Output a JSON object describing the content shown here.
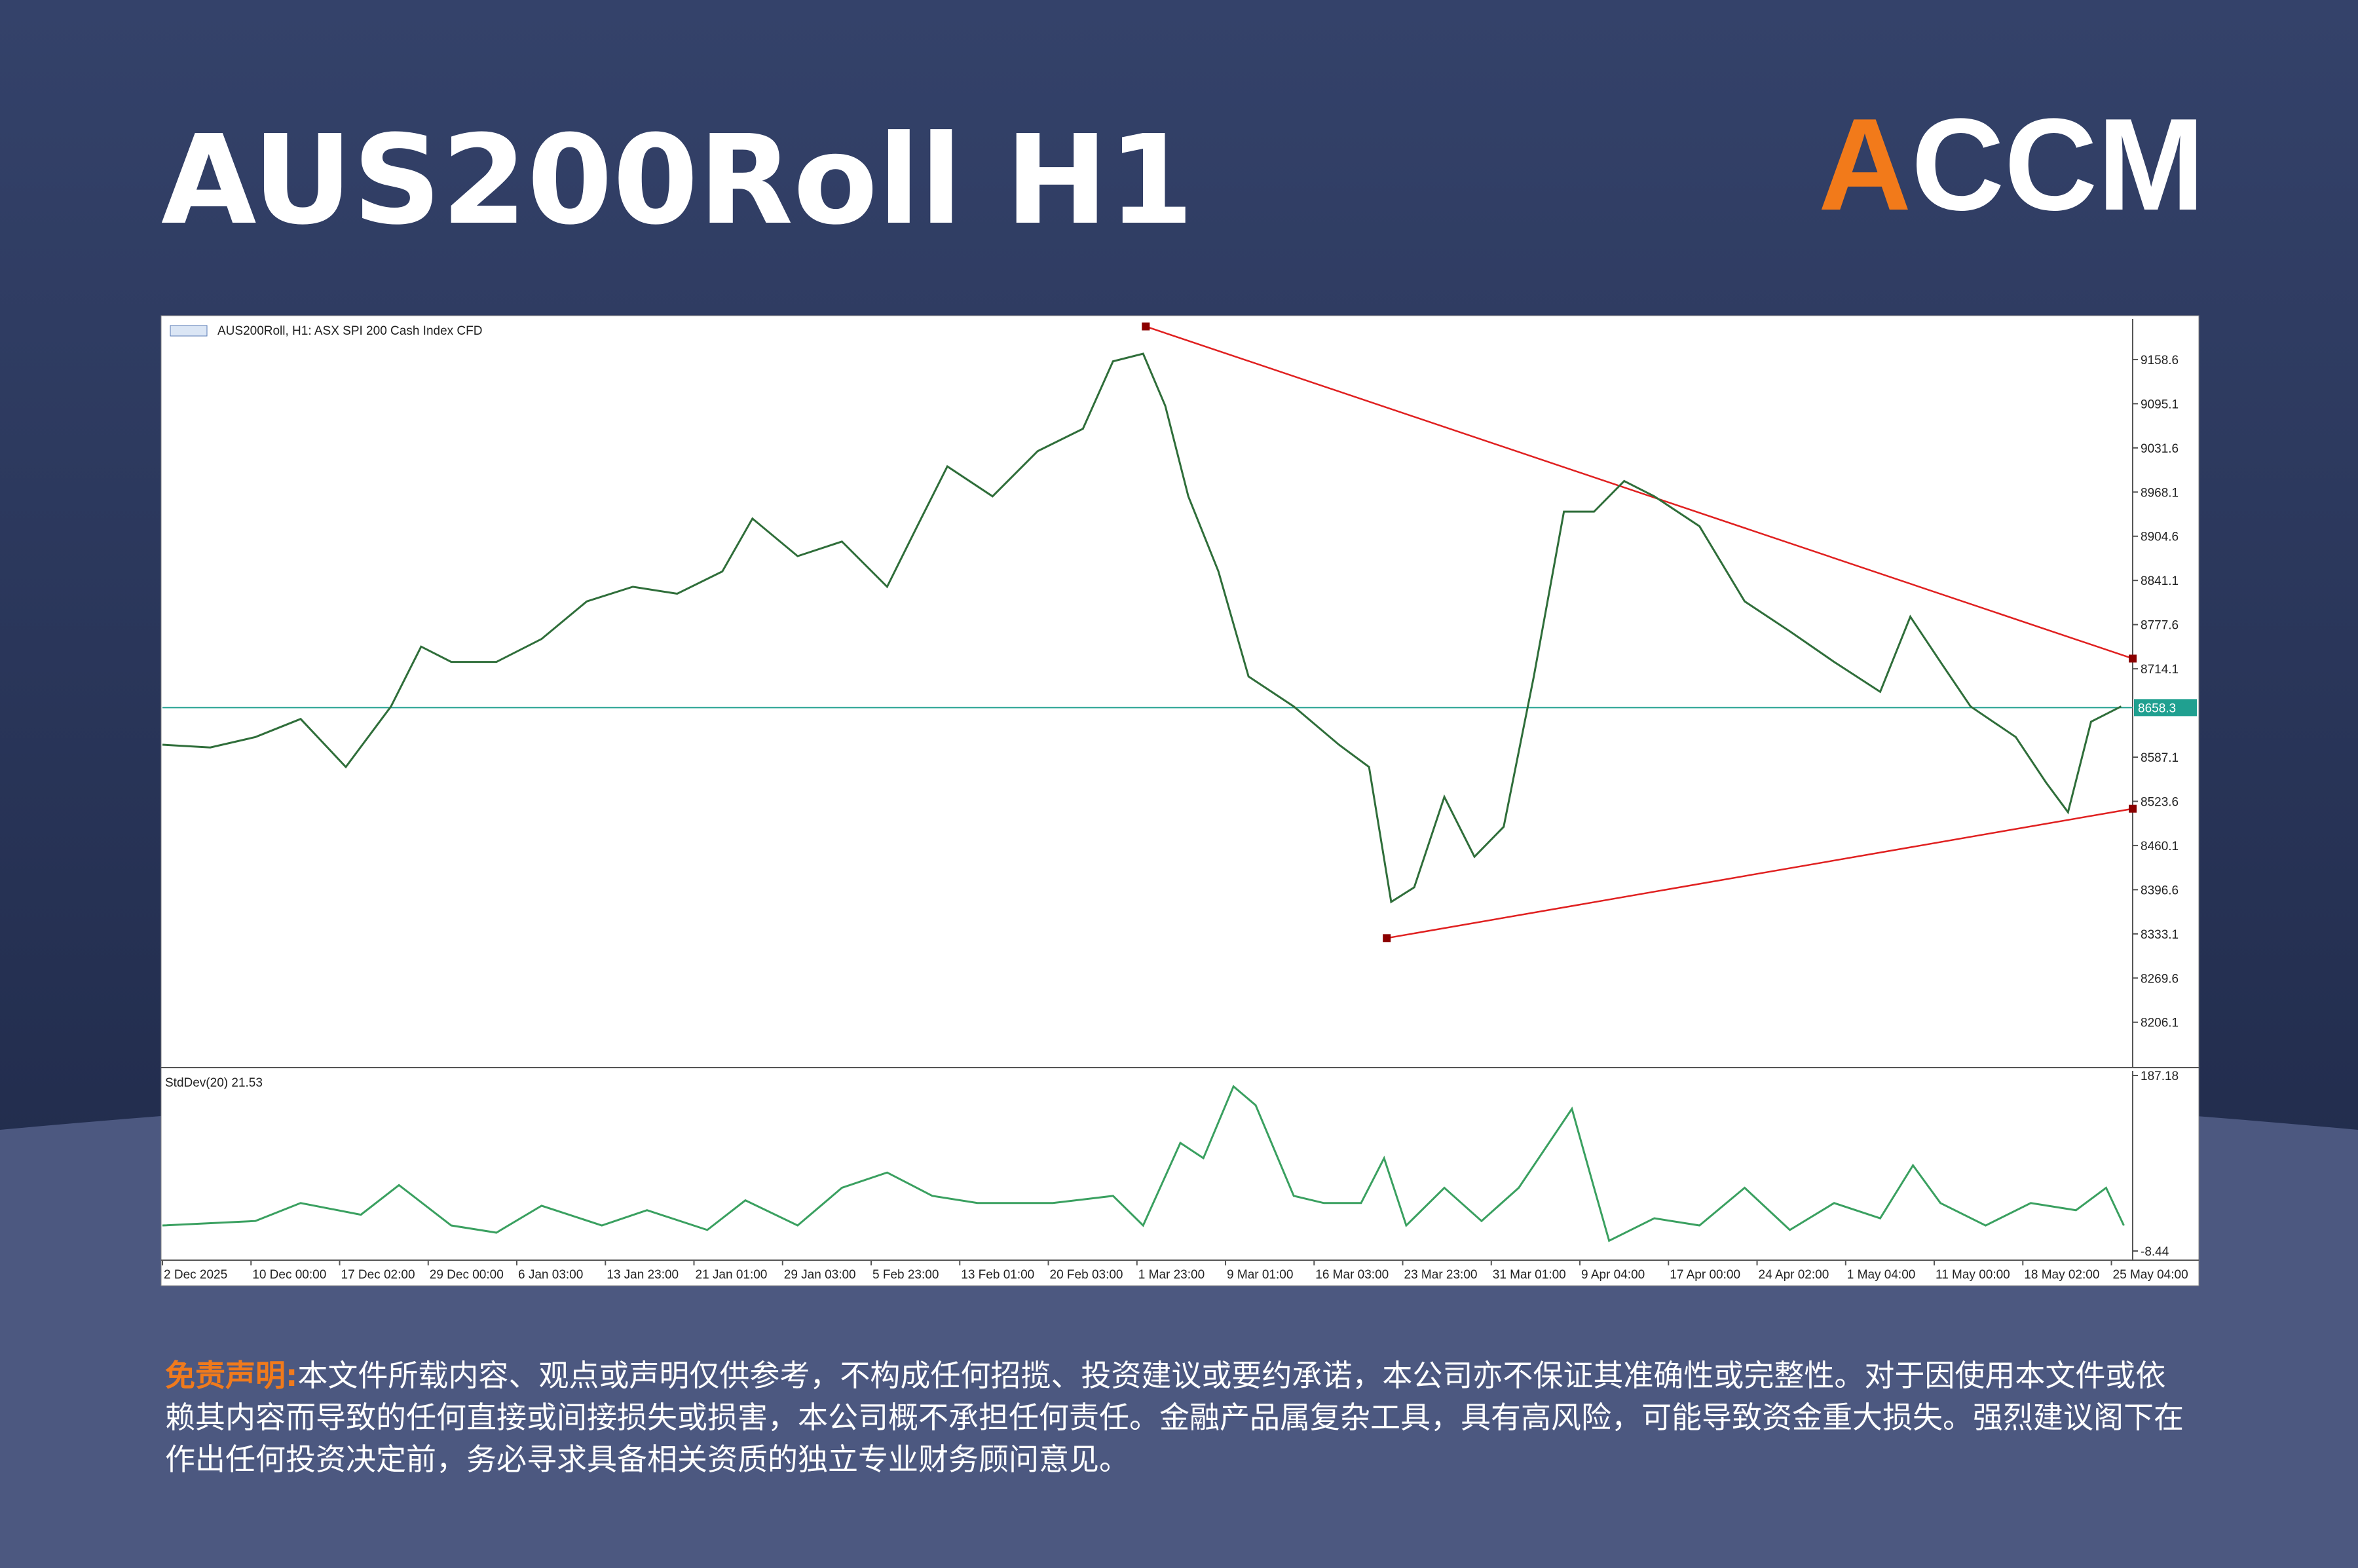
{
  "header": {
    "title": "AUS200Roll H1",
    "logo": "ACCM"
  },
  "chart_data": [
    {
      "type": "line",
      "title": "AUS200Roll, H1:  ASX SPI 200 Cash Index CFD",
      "x": [
        0,
        0.54,
        1.05,
        1.56,
        2.07,
        2.58,
        2.92,
        3.26,
        3.77,
        4.28,
        4.79,
        5.31,
        5.81,
        6.32,
        6.66,
        7.17,
        7.67,
        8.18,
        8.52,
        8.86,
        9.37,
        9.88,
        10.39,
        10.73,
        11.07,
        11.32,
        11.58,
        11.92,
        12.26,
        12.77,
        13.28,
        13.62,
        13.87,
        14.13,
        14.47,
        14.81,
        15.14,
        15.48,
        15.82,
        16.16,
        16.5,
        16.84,
        17.35,
        17.86,
        18.37,
        18.87,
        19.39,
        19.73,
        20.07,
        20.41,
        20.92,
        21.26,
        21.51,
        21.77,
        22.11
      ],
      "values": [
        8605,
        8601,
        8616,
        8642,
        8573,
        8660,
        8746,
        8724,
        8724,
        8757,
        8811,
        8832,
        8822,
        8854,
        8930,
        8876,
        8897,
        8832,
        8919,
        9005,
        8962,
        9027,
        9059,
        9156,
        9167,
        9092,
        8962,
        8854,
        8703,
        8660,
        8605,
        8573,
        8379,
        8400,
        8530,
        8444,
        8487,
        8703,
        8940,
        8940,
        8984,
        8962,
        8919,
        8811,
        8768,
        8724,
        8681,
        8789,
        8724,
        8660,
        8616,
        8551,
        8508,
        8638,
        8660
      ],
      "color": "#2f6e3a",
      "xlim": [
        0,
        22.24
      ],
      "ylim": [
        8145.6,
        9216.9
      ],
      "yticks": [
        8206.1,
        8269.6,
        8333.1,
        8396.6,
        8460.1,
        8523.6,
        8587.1,
        8714.1,
        8777.6,
        8841.1,
        8904.6,
        8968.1,
        9031.6,
        9095.1,
        9158.6
      ],
      "current_price": 8658.3,
      "current_price_color": "#20a090",
      "trendlines": [
        {
          "x": [
            11.1,
            22.24
          ],
          "values": [
            9206.1,
            8728.8
          ],
          "color": "#e02020"
        },
        {
          "x": [
            13.82,
            22.24
          ],
          "values": [
            8327,
            8513
          ],
          "color": "#e02020"
        }
      ]
    },
    {
      "type": "line",
      "title": "StdDev(20) 21.53",
      "x": [
        0,
        1.05,
        1.56,
        2.24,
        2.67,
        3.26,
        3.77,
        4.28,
        4.96,
        5.47,
        6.15,
        6.58,
        7.17,
        7.67,
        8.18,
        8.69,
        9.2,
        10.05,
        10.73,
        11.07,
        11.49,
        11.75,
        12.09,
        12.34,
        12.77,
        13.11,
        13.53,
        13.79,
        14.04,
        14.47,
        14.89,
        15.31,
        15.91,
        16.16,
        16.33,
        16.84,
        17.35,
        17.86,
        18.37,
        18.87,
        19.39,
        19.76,
        20.07,
        20.58,
        21.09,
        21.6,
        21.94,
        22.14
      ],
      "values": [
        20,
        25,
        45,
        32,
        65,
        20,
        12,
        42,
        20,
        37,
        15,
        48,
        20,
        62,
        79,
        53,
        45,
        45,
        53,
        20,
        112,
        95,
        175,
        154,
        53,
        45,
        45,
        95,
        20,
        62,
        25,
        62,
        150,
        62,
        3,
        28,
        20,
        62,
        15,
        45,
        28,
        87,
        45,
        20,
        45,
        37,
        62,
        20
      ],
      "color": "#3aa060",
      "xlim": [
        0,
        22.24
      ],
      "ylim": [
        -8.44,
        187.18
      ],
      "yticks": [
        -8.44,
        187.18
      ],
      "xticks": [
        {
          "value": 0,
          "label": "2 Dec 2025"
        },
        {
          "value": 1,
          "label": "10 Dec 00:00"
        },
        {
          "value": 2,
          "label": "17 Dec 02:00"
        },
        {
          "value": 3,
          "label": "29 Dec 00:00"
        },
        {
          "value": 4,
          "label": "6 Jan 03:00"
        },
        {
          "value": 5,
          "label": "13 Jan 23:00"
        },
        {
          "value": 6,
          "label": "21 Jan 01:00"
        },
        {
          "value": 7,
          "label": "29 Jan 03:00"
        },
        {
          "value": 8,
          "label": "5 Feb 23:00"
        },
        {
          "value": 9,
          "label": "13 Feb 01:00"
        },
        {
          "value": 10,
          "label": "20 Feb 03:00"
        },
        {
          "value": 11,
          "label": "1 Mar 23:00"
        },
        {
          "value": 12,
          "label": "9 Mar 01:00"
        },
        {
          "value": 13,
          "label": "16 Mar 03:00"
        },
        {
          "value": 14,
          "label": "23 Mar 23:00"
        },
        {
          "value": 15,
          "label": "31 Mar 01:00"
        },
        {
          "value": 16,
          "label": "9 Apr 04:00"
        },
        {
          "value": 17,
          "label": "17 Apr 00:00"
        },
        {
          "value": 18,
          "label": "24 Apr 02:00"
        },
        {
          "value": 19,
          "label": "1 May 04:00"
        },
        {
          "value": 20,
          "label": "11 May 00:00"
        },
        {
          "value": 21,
          "label": "18 May 02:00"
        },
        {
          "value": 22,
          "label": "25 May 04:00"
        }
      ]
    }
  ],
  "disclaimer": {
    "label": "免责声明:",
    "text": "本文件所载内容、观点或声明仅供参考，不构成任何招揽、投资建议或要约承诺，本公司亦不保证其准确性或完整性。对于因使用本文件或依赖其内容而导致的任何直接或间接损失或损害，本公司概不承担任何责任。金融产品属复杂工具，具有高风险，可能导致资金重大损失。强烈建议阁下在作出任何投资决定前，务必寻求具备相关资质的独立专业财务顾问意见。"
  }
}
